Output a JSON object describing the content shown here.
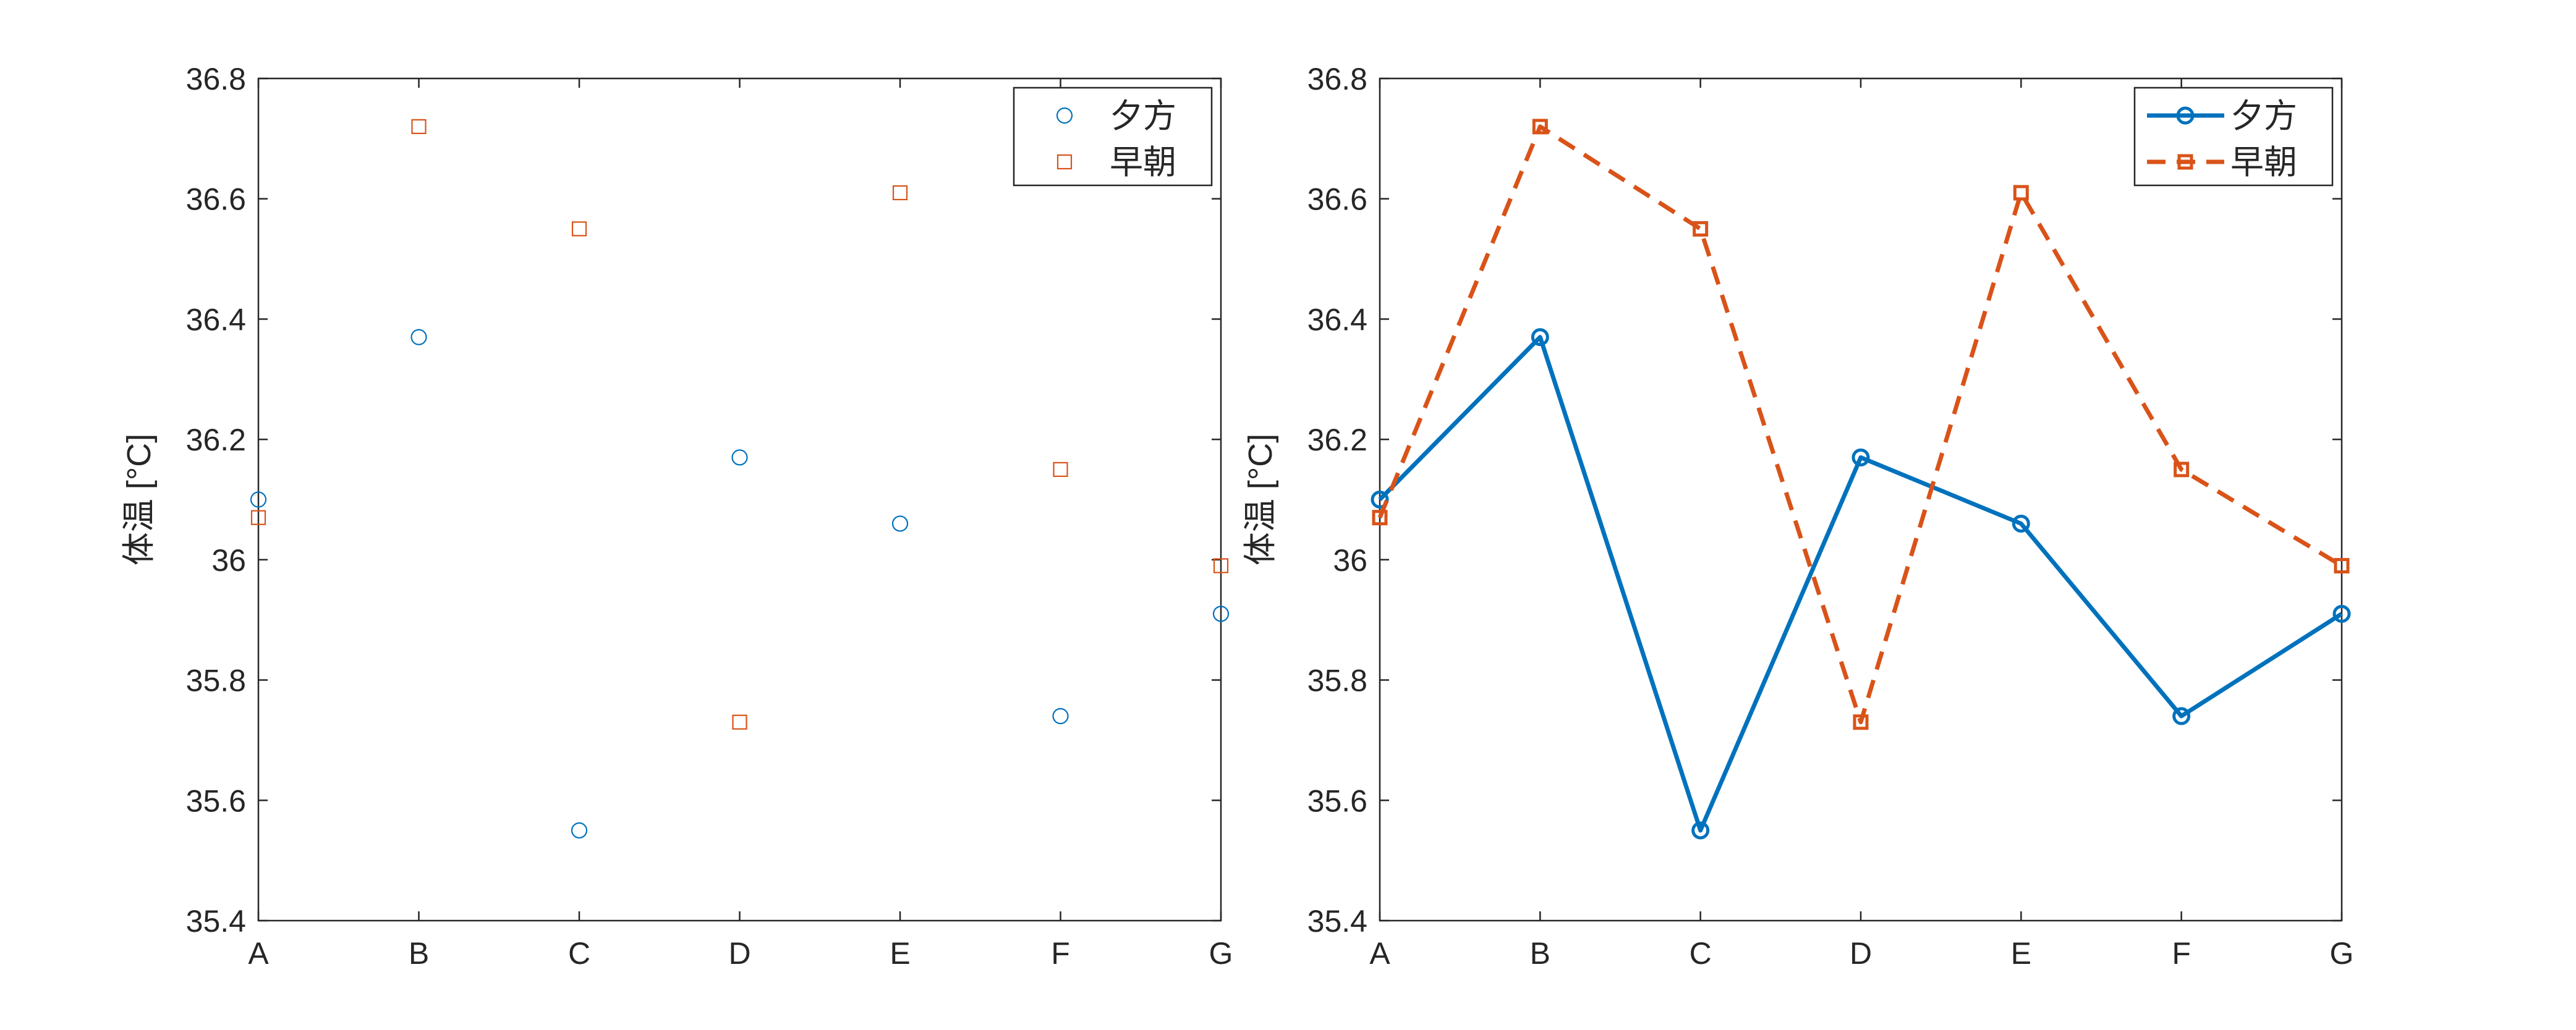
{
  "chart_data": [
    {
      "type": "scatter",
      "categories": [
        "A",
        "B",
        "C",
        "D",
        "E",
        "F",
        "G"
      ],
      "ylabel": "体温 [°C]",
      "ylim": [
        35.4,
        36.8
      ],
      "yticks": [
        "35.4",
        "35.6",
        "35.8",
        "36",
        "36.2",
        "36.4",
        "36.6",
        "36.8"
      ],
      "grid": false,
      "legend_position": "top-right",
      "series": [
        {
          "name": "夕方",
          "marker": "circle",
          "color": "#0072BD",
          "values": [
            36.1,
            36.37,
            35.55,
            36.17,
            36.06,
            35.74,
            35.91
          ]
        },
        {
          "name": "早朝",
          "marker": "square",
          "color": "#D95319",
          "values": [
            36.07,
            36.72,
            36.55,
            35.73,
            36.61,
            36.15,
            35.99
          ]
        }
      ]
    },
    {
      "type": "line",
      "categories": [
        "A",
        "B",
        "C",
        "D",
        "E",
        "F",
        "G"
      ],
      "ylabel": "体温 [°C]",
      "ylim": [
        35.4,
        36.8
      ],
      "yticks": [
        "35.4",
        "35.6",
        "35.8",
        "36",
        "36.2",
        "36.4",
        "36.6",
        "36.8"
      ],
      "grid": false,
      "legend_position": "top-right",
      "series": [
        {
          "name": "夕方",
          "marker": "circle",
          "line": "solid",
          "color": "#0072BD",
          "values": [
            36.1,
            36.37,
            35.55,
            36.17,
            36.06,
            35.74,
            35.91
          ]
        },
        {
          "name": "早朝",
          "marker": "square",
          "line": "dashed",
          "color": "#D95319",
          "values": [
            36.07,
            36.72,
            36.55,
            35.73,
            36.61,
            36.15,
            35.99
          ]
        }
      ]
    }
  ]
}
